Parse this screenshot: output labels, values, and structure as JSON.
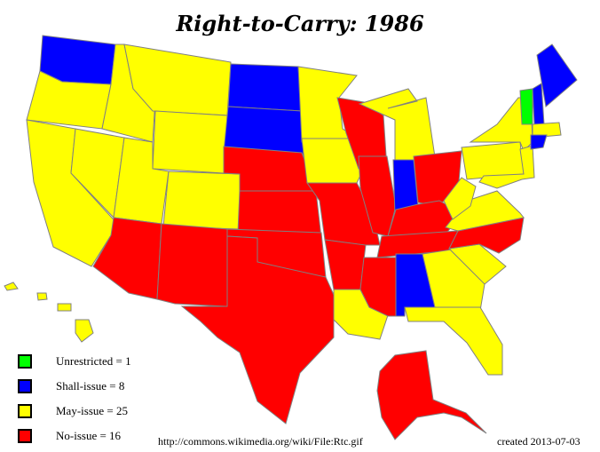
{
  "title": "Right-to-Carry: 1986",
  "colors": {
    "unrestricted": "#00ff00",
    "shall": "#0000ff",
    "may": "#ffff00",
    "no": "#ff0000",
    "border": "#808080"
  },
  "legend": [
    {
      "key": "unrestricted",
      "label": "Unrestricted = 1"
    },
    {
      "key": "shall",
      "label": "Shall-issue = 8"
    },
    {
      "key": "may",
      "label": "May-issue = 25"
    },
    {
      "key": "no",
      "label": "No-issue = 16"
    }
  ],
  "states": {
    "WA": "shall",
    "OR": "may",
    "CA": "may",
    "NV": "may",
    "ID": "may",
    "MT": "may",
    "WY": "may",
    "UT": "may",
    "CO": "may",
    "AZ": "no",
    "NM": "no",
    "ND": "shall",
    "SD": "shall",
    "NE": "no",
    "KS": "no",
    "OK": "no",
    "TX": "no",
    "MN": "may",
    "IA": "may",
    "MO": "no",
    "AR": "no",
    "LA": "may",
    "WI": "no",
    "IL": "no",
    "MI": "may",
    "IN": "shall",
    "OH": "no",
    "KY": "no",
    "TN": "no",
    "MS": "no",
    "AL": "shall",
    "GA": "may",
    "FL": "may",
    "SC": "may",
    "NC": "no",
    "VA": "may",
    "WV": "may",
    "PA": "may",
    "NY": "may",
    "MD-DE-NJ": "may",
    "VT": "unrestricted",
    "NH": "shall",
    "ME": "shall",
    "MA-RI": "may",
    "CT": "shall",
    "AK": "no",
    "HI": "may"
  },
  "source": "http://commons.wikimedia.org/wiki/File:Rtc.gif",
  "created": "created 2013-07-03"
}
